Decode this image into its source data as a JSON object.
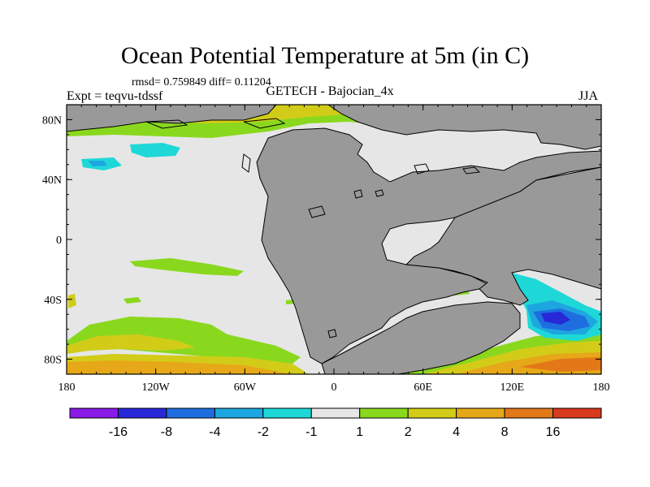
{
  "title": "Ocean Potential Temperature at 5m (in C)",
  "stats_text": "rmsd= 0.759849 diff= 0.11204",
  "experiment_label": "Expt = teqvu-tdssf",
  "center_label": "GETECH - Bajocian_4x",
  "season_label": "JJA",
  "map": {
    "lon_range": [
      -180,
      180
    ],
    "lat_range": [
      -90,
      90
    ],
    "lon_ticks": [
      {
        "value": -180,
        "label": "180"
      },
      {
        "value": -120,
        "label": "120W"
      },
      {
        "value": -60,
        "label": "60W"
      },
      {
        "value": 0,
        "label": "0"
      },
      {
        "value": 60,
        "label": "60E"
      },
      {
        "value": 120,
        "label": "120E"
      },
      {
        "value": 180,
        "label": "180"
      }
    ],
    "lat_ticks": [
      {
        "value": 80,
        "label": "80N"
      },
      {
        "value": 40,
        "label": "40N"
      },
      {
        "value": 0,
        "label": "0"
      },
      {
        "value": -40,
        "label": "40S"
      },
      {
        "value": -80,
        "label": "80S"
      }
    ],
    "colors": {
      "ocean_neutral": "#e6e6e6",
      "land": "#999999",
      "coast": "#000000"
    }
  },
  "colorbar": {
    "colors": [
      "#8a1ae6",
      "#2828d8",
      "#1e6ee0",
      "#1ea6e0",
      "#1ed8d8",
      "#e6e6e6",
      "#8ad81e",
      "#d2cc18",
      "#e6a818",
      "#e27818",
      "#d83a1e"
    ],
    "tick_labels": [
      "-16",
      "-8",
      "-4",
      "-2",
      "-1",
      "1",
      "2",
      "4",
      "8",
      "16"
    ]
  }
}
